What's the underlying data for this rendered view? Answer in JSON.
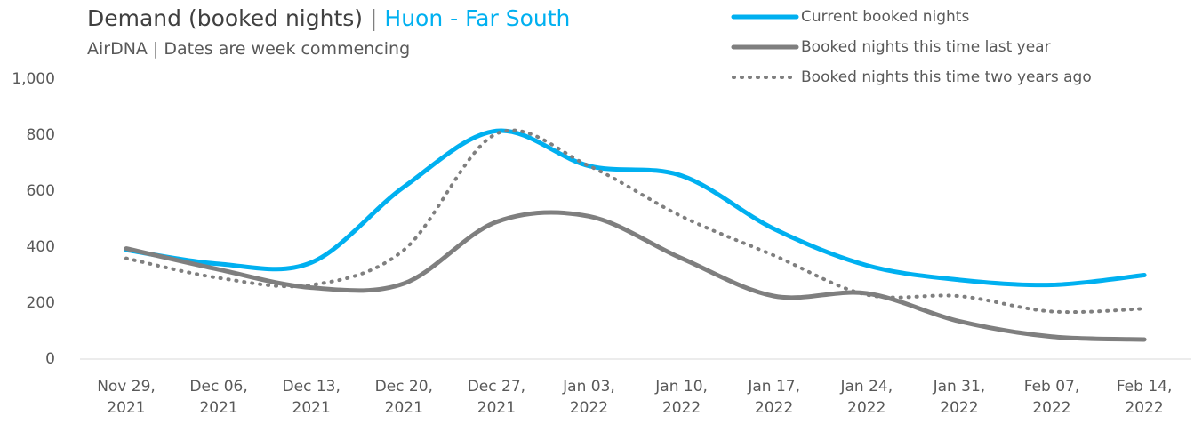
{
  "chart_data": {
    "type": "line",
    "title": "Demand (booked nights)",
    "title_separator": "|",
    "title_highlight": "Huon - Far South",
    "subtitle": "AirDNA | Dates are week commencing",
    "categories": [
      "Nov 29, 2021",
      "Dec 06, 2021",
      "Dec 13, 2021",
      "Dec 20, 2021",
      "Dec 27, 2021",
      "Jan 03, 2022",
      "Jan 10, 2022",
      "Jan 17, 2022",
      "Jan 24, 2022",
      "Jan 31, 2022",
      "Feb 07, 2022",
      "Feb 14, 2022"
    ],
    "series": [
      {
        "name": "Current booked nights",
        "color": "#00b0f0",
        "style": "solid",
        "values": [
          390,
          340,
          345,
          615,
          815,
          690,
          655,
          465,
          335,
          283,
          265,
          300
        ]
      },
      {
        "name": "Booked nights this time last year",
        "color": "#7f7f7f",
        "style": "solid",
        "values": [
          395,
          320,
          255,
          270,
          490,
          510,
          360,
          225,
          235,
          135,
          80,
          70
        ]
      },
      {
        "name": "Booked nights this time two years ago",
        "color": "#7f7f7f",
        "style": "dotted",
        "values": [
          360,
          290,
          265,
          390,
          805,
          690,
          510,
          370,
          230,
          225,
          170,
          180
        ]
      }
    ],
    "ylim": [
      0,
      1000
    ],
    "yticks": [
      0,
      200,
      400,
      600,
      800,
      {
        "value": 1000,
        "label": "1,000"
      }
    ],
    "grid": false,
    "legend": "top-right"
  }
}
